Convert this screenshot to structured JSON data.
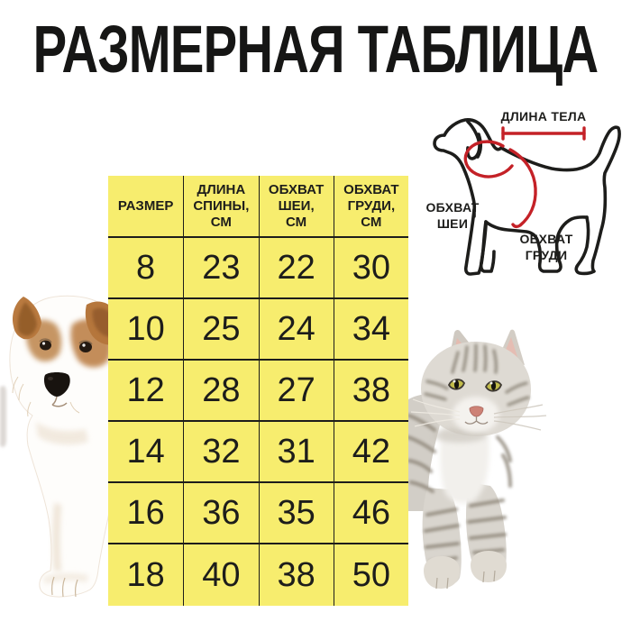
{
  "title": "РАЗМЕРНАЯ ТАБЛИЦА",
  "chart_data": {
    "type": "table",
    "title": "РАЗМЕРНАЯ ТАБЛИЦА",
    "columns": [
      "РАЗМЕР",
      "ДЛИНА\nСПИНЫ,\nСМ",
      "ОБХВАТ\nШЕИ,\nСМ",
      "ОБХВАТ\nГРУДИ,\nСМ"
    ],
    "rows": [
      [
        8,
        23,
        22,
        30
      ],
      [
        10,
        25,
        24,
        34
      ],
      [
        12,
        28,
        27,
        38
      ],
      [
        14,
        32,
        31,
        42
      ],
      [
        16,
        36,
        35,
        46
      ],
      [
        18,
        40,
        38,
        50
      ]
    ]
  },
  "diagram": {
    "body_length_label": "ДЛИНА ТЕЛА",
    "neck_girth_label": "ОБХВАТ\nШЕИ",
    "chest_girth_label": "ОБХВАТ\nГРУДИ"
  },
  "colors": {
    "table_background": "#F7ED6E",
    "accent_red": "#C42127",
    "ink": "#1D1D1B",
    "background": "#FFFFFF"
  }
}
